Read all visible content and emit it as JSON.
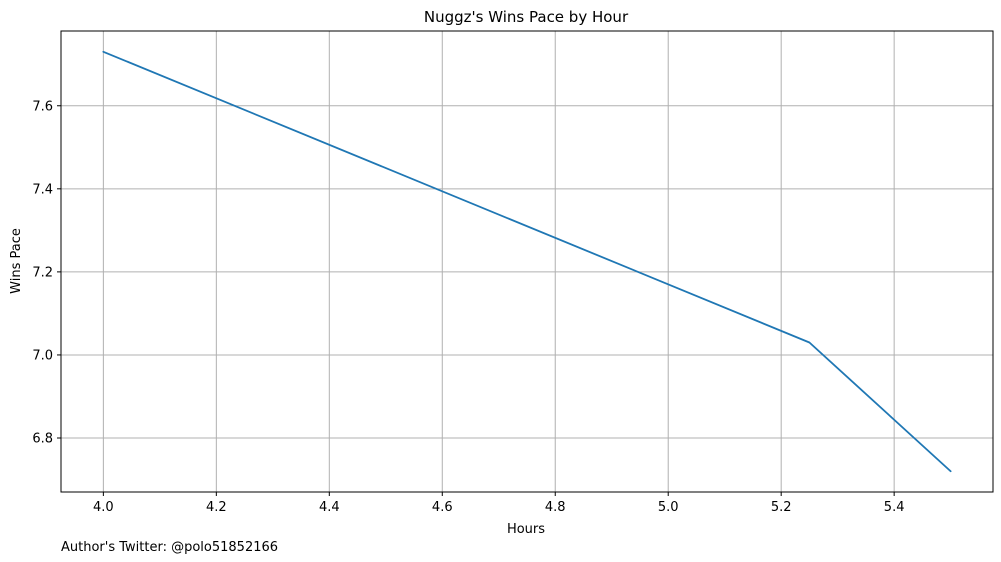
{
  "chart_data": {
    "type": "line",
    "title": "Nuggz's Wins Pace by Hour",
    "xlabel": "Hours",
    "ylabel": "Wins Pace",
    "xlim": [
      3.925,
      5.575
    ],
    "ylim": [
      6.67,
      7.78
    ],
    "xticks": [
      "4.0",
      "4.2",
      "4.4",
      "4.6",
      "4.8",
      "5.0",
      "5.2",
      "5.4"
    ],
    "yticks": [
      "6.8",
      "7.0",
      "7.2",
      "7.4",
      "7.6"
    ],
    "grid": true,
    "series": [
      {
        "x": [
          4.0,
          5.25,
          5.5
        ],
        "y": [
          7.73,
          7.03,
          6.72
        ],
        "color": "#1f77b4"
      }
    ]
  },
  "footnote": "Author's Twitter: @polo51852166"
}
